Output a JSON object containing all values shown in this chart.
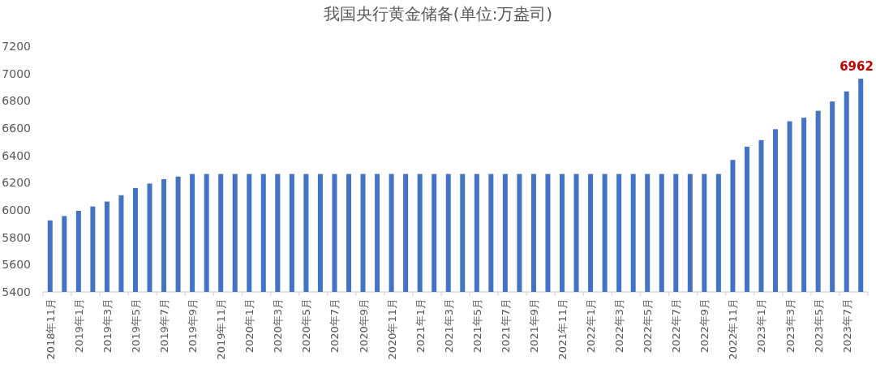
{
  "chart_data": {
    "type": "bar",
    "title": "我国央行黄金储备(单位:万盎司)",
    "categories": [
      "2018年11月",
      null,
      "2019年1月",
      null,
      "2019年3月",
      null,
      "2019年5月",
      null,
      "2019年7月",
      null,
      "2019年9月",
      null,
      "2019年11月",
      null,
      "2020年1月",
      null,
      "2020年3月",
      null,
      "2020年5月",
      null,
      "2020年7月",
      null,
      "2020年9月",
      null,
      "2020年11月",
      null,
      "2021年1月",
      null,
      "2021年3月",
      null,
      "2021年5月",
      null,
      "2021年7月",
      null,
      "2021年9月",
      null,
      "2021年11月",
      null,
      "2022年1月",
      null,
      "2022年3月",
      null,
      "2022年5月",
      null,
      "2022年7月",
      null,
      "2022年9月",
      null,
      "2022年11月",
      null,
      "2023年1月",
      null,
      "2023年3月",
      null,
      "2023年5月",
      null,
      "2023年7月",
      null
    ],
    "values": [
      5924,
      5956,
      5994,
      6026,
      6062,
      6108,
      6161,
      6194,
      6226,
      6245,
      6264,
      6264,
      6264,
      6264,
      6264,
      6264,
      6264,
      6264,
      6264,
      6264,
      6264,
      6264,
      6264,
      6264,
      6264,
      6264,
      6264,
      6264,
      6264,
      6264,
      6264,
      6264,
      6264,
      6264,
      6264,
      6264,
      6264,
      6264,
      6264,
      6264,
      6264,
      6264,
      6264,
      6264,
      6264,
      6264,
      6264,
      6264,
      6367,
      6464,
      6512,
      6592,
      6650,
      6676,
      6727,
      6795,
      6869,
      6962
    ],
    "value_labels": [
      null,
      null,
      null,
      null,
      null,
      null,
      null,
      null,
      null,
      null,
      null,
      null,
      null,
      null,
      null,
      null,
      null,
      null,
      null,
      null,
      null,
      null,
      null,
      null,
      null,
      null,
      null,
      null,
      null,
      null,
      null,
      null,
      null,
      null,
      null,
      null,
      null,
      null,
      null,
      null,
      null,
      null,
      null,
      null,
      null,
      null,
      null,
      null,
      null,
      null,
      null,
      null,
      null,
      null,
      null,
      null,
      null,
      "6962"
    ],
    "color": "#4472c4",
    "ylim": [
      5400,
      7200
    ],
    "yticks": [
      5400,
      5600,
      5800,
      6000,
      6200,
      6400,
      6600,
      6800,
      7000,
      7200
    ]
  }
}
